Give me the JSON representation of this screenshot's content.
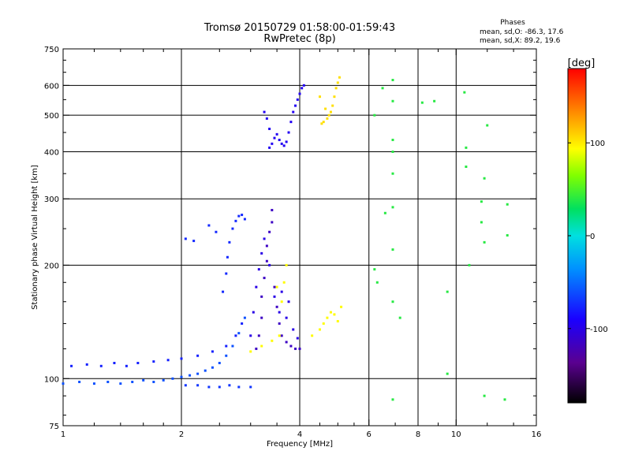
{
  "chart_data": {
    "type": "scatter",
    "title_line1": "Tromsø 20150729 01:58:00-01:59:43",
    "title_line2": "RwPretec (8p)",
    "xlabel": "Frequency [MHz]",
    "ylabel": "Stationary phase Virtual Height [km]",
    "xscale": "log",
    "yscale": "log",
    "xlim": [
      1,
      16
    ],
    "ylim": [
      75,
      750
    ],
    "x_ticks": [
      1,
      2,
      4,
      6,
      8,
      10,
      16
    ],
    "x_tick_labels": [
      "1",
      "2",
      "4",
      "6",
      "8",
      "10",
      "16"
    ],
    "x_minor_ticks": [
      1.2,
      1.4,
      1.6,
      1.8,
      2.5,
      3,
      3.5,
      4.5,
      5,
      5.5,
      7,
      9,
      12,
      14
    ],
    "y_ticks": [
      75,
      100,
      200,
      300,
      400,
      500,
      600,
      750
    ],
    "y_tick_labels": [
      "75",
      "100",
      "200",
      "300",
      "400",
      "500",
      "600",
      "750"
    ],
    "y_grid": [
      100,
      200,
      300,
      400,
      500,
      600
    ],
    "x_grid": [
      2,
      4,
      6,
      8,
      10
    ],
    "phase_header": "Phases",
    "phase_o": "mean, sd,O: -86.3, 17.6",
    "phase_x": "mean, sd,X:  89.2, 19.6",
    "colorbar": {
      "label": "[deg]",
      "range": [
        -180,
        180
      ],
      "ticks": [
        100,
        0,
        -100
      ],
      "tick_labels": [
        "100",
        "0",
        "-100"
      ]
    },
    "series": [
      {
        "name": "o-trace-low-cyan",
        "phase": -60,
        "points": [
          [
            1.0,
            97
          ],
          [
            1.1,
            98
          ],
          [
            1.2,
            97
          ],
          [
            1.3,
            98
          ],
          [
            1.4,
            97
          ],
          [
            1.5,
            98
          ],
          [
            1.6,
            99
          ],
          [
            1.7,
            98
          ],
          [
            1.8,
            99
          ],
          [
            1.9,
            100
          ],
          [
            2.0,
            101
          ],
          [
            2.1,
            102
          ],
          [
            2.2,
            103
          ],
          [
            2.3,
            105
          ],
          [
            2.4,
            107
          ],
          [
            2.5,
            110
          ],
          [
            2.6,
            115
          ],
          [
            2.7,
            122
          ],
          [
            2.8,
            132
          ],
          [
            2.9,
            145
          ]
        ]
      },
      {
        "name": "o-trace-mid-blue",
        "phase": -78,
        "points": [
          [
            1.05,
            108
          ],
          [
            1.15,
            109
          ],
          [
            1.25,
            108
          ],
          [
            1.35,
            110
          ],
          [
            1.45,
            108
          ],
          [
            1.55,
            110
          ],
          [
            1.7,
            111
          ],
          [
            1.85,
            112
          ],
          [
            2.0,
            113
          ],
          [
            2.2,
            115
          ],
          [
            2.4,
            118
          ],
          [
            2.6,
            122
          ],
          [
            2.75,
            130
          ],
          [
            2.85,
            140
          ]
        ]
      },
      {
        "name": "o-trace-bottom",
        "phase": -70,
        "points": [
          [
            2.05,
            96
          ],
          [
            2.2,
            96
          ],
          [
            2.35,
            95
          ],
          [
            2.5,
            95
          ],
          [
            2.65,
            96
          ],
          [
            2.8,
            95
          ],
          [
            3.0,
            95
          ]
        ]
      },
      {
        "name": "o-cusp-high",
        "phase": -75,
        "points": [
          [
            2.55,
            170
          ],
          [
            2.6,
            190
          ],
          [
            2.62,
            210
          ],
          [
            2.65,
            230
          ],
          [
            2.7,
            250
          ],
          [
            2.75,
            262
          ],
          [
            2.8,
            270
          ],
          [
            2.85,
            272
          ],
          [
            2.9,
            265
          ],
          [
            2.35,
            255
          ],
          [
            2.45,
            245
          ],
          [
            2.05,
            235
          ],
          [
            2.15,
            232
          ]
        ]
      },
      {
        "name": "f-layer-violet",
        "phase": -115,
        "points": [
          [
            3.1,
            120
          ],
          [
            3.15,
            130
          ],
          [
            3.2,
            145
          ],
          [
            3.2,
            165
          ],
          [
            3.25,
            185
          ],
          [
            3.3,
            205
          ],
          [
            3.3,
            225
          ],
          [
            3.35,
            245
          ],
          [
            3.4,
            260
          ],
          [
            3.4,
            280
          ],
          [
            3.45,
            175
          ],
          [
            3.5,
            155
          ],
          [
            3.55,
            140
          ],
          [
            3.6,
            130
          ],
          [
            3.7,
            125
          ],
          [
            3.8,
            122
          ],
          [
            3.9,
            120
          ],
          [
            4.0,
            120
          ]
        ]
      },
      {
        "name": "f-layer-cloud",
        "phase": -100,
        "points": [
          [
            3.0,
            130
          ],
          [
            3.05,
            150
          ],
          [
            3.1,
            175
          ],
          [
            3.15,
            195
          ],
          [
            3.2,
            215
          ],
          [
            3.25,
            235
          ],
          [
            3.35,
            200
          ],
          [
            3.45,
            165
          ],
          [
            3.55,
            150
          ],
          [
            3.6,
            170
          ],
          [
            3.7,
            145
          ],
          [
            3.75,
            160
          ],
          [
            3.85,
            135
          ],
          [
            3.95,
            128
          ]
        ]
      },
      {
        "name": "x-trace-yellow",
        "phase": 95,
        "points": [
          [
            3.0,
            118
          ],
          [
            3.2,
            122
          ],
          [
            3.4,
            126
          ],
          [
            3.55,
            130
          ],
          [
            3.65,
            180
          ],
          [
            3.7,
            200
          ],
          [
            3.6,
            160
          ],
          [
            3.5,
            175
          ],
          [
            4.3,
            130
          ],
          [
            4.5,
            135
          ],
          [
            4.6,
            140
          ],
          [
            4.7,
            145
          ],
          [
            4.8,
            150
          ],
          [
            4.9,
            148
          ],
          [
            5.0,
            142
          ],
          [
            5.1,
            155
          ]
        ]
      },
      {
        "name": "high-layer-blue",
        "phase": -95,
        "points": [
          [
            3.35,
            410
          ],
          [
            3.4,
            420
          ],
          [
            3.45,
            435
          ],
          [
            3.5,
            445
          ],
          [
            3.55,
            430
          ],
          [
            3.6,
            420
          ],
          [
            3.65,
            415
          ],
          [
            3.7,
            425
          ],
          [
            3.75,
            450
          ],
          [
            3.8,
            480
          ],
          [
            3.85,
            510
          ],
          [
            3.9,
            530
          ],
          [
            3.95,
            550
          ],
          [
            4.0,
            570
          ],
          [
            4.05,
            590
          ],
          [
            4.1,
            600
          ],
          [
            3.35,
            460
          ],
          [
            3.3,
            490
          ],
          [
            3.25,
            510
          ]
        ]
      },
      {
        "name": "high-layer-yellow",
        "phase": 105,
        "points": [
          [
            4.55,
            475
          ],
          [
            4.6,
            480
          ],
          [
            4.7,
            490
          ],
          [
            4.75,
            500
          ],
          [
            4.8,
            510
          ],
          [
            4.85,
            530
          ],
          [
            4.9,
            560
          ],
          [
            4.95,
            590
          ],
          [
            5.0,
            610
          ],
          [
            5.05,
            630
          ],
          [
            4.5,
            560
          ],
          [
            4.65,
            520
          ]
        ]
      },
      {
        "name": "scattered-echoes",
        "phase": 40,
        "points": [
          [
            6.2,
            500
          ],
          [
            6.5,
            590
          ],
          [
            6.9,
            545
          ],
          [
            6.9,
            620
          ],
          [
            6.9,
            430
          ],
          [
            6.9,
            400
          ],
          [
            6.9,
            350
          ],
          [
            6.9,
            285
          ],
          [
            6.9,
            220
          ],
          [
            6.9,
            160
          ],
          [
            7.2,
            145
          ],
          [
            6.6,
            275
          ],
          [
            6.2,
            195
          ],
          [
            6.3,
            180
          ],
          [
            10.5,
            575
          ],
          [
            10.6,
            410
          ],
          [
            10.6,
            365
          ],
          [
            11.8,
            340
          ],
          [
            11.6,
            295
          ],
          [
            11.6,
            260
          ],
          [
            11.8,
            230
          ],
          [
            10.8,
            200
          ],
          [
            13.5,
            290
          ],
          [
            13.5,
            240
          ],
          [
            12.0,
            470
          ],
          [
            9.5,
            170
          ],
          [
            9.5,
            103
          ],
          [
            11.8,
            90
          ],
          [
            13.3,
            88
          ],
          [
            6.9,
            88
          ],
          [
            8.2,
            540
          ],
          [
            8.8,
            545
          ]
        ]
      }
    ]
  }
}
